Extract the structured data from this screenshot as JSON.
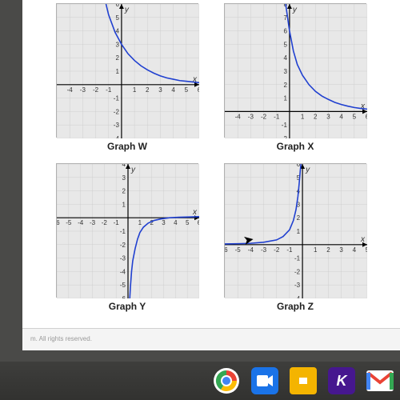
{
  "footer_text": "m. All rights reserved.",
  "graphs": {
    "W": {
      "label": "Graph W",
      "bg": "#e8e8e8",
      "grid": "#cfcfcf",
      "axis": "#000000",
      "curve": "#2040d0",
      "xlim": [
        -5,
        6
      ],
      "ylim": [
        -4,
        6
      ],
      "xticks": [
        -4,
        -3,
        -2,
        -1,
        1,
        2,
        3,
        4,
        5,
        6
      ],
      "yticks": [
        -4,
        -3,
        -2,
        -1,
        1,
        2,
        3,
        4,
        5,
        6
      ],
      "points_x": [
        -1.2,
        -1,
        -0.5,
        0,
        0.5,
        1,
        1.5,
        2,
        2.5,
        3,
        3.5,
        4,
        4.5,
        5,
        5.5,
        6
      ],
      "points_y": [
        6,
        5.2,
        3.9,
        3,
        2.3,
        1.8,
        1.4,
        1.1,
        0.85,
        0.65,
        0.5,
        0.4,
        0.3,
        0.25,
        0.2,
        0.15
      ]
    },
    "X": {
      "label": "Graph X",
      "bg": "#e8e8e8",
      "grid": "#cfcfcf",
      "axis": "#000000",
      "curve": "#2040d0",
      "xlim": [
        -5,
        6
      ],
      "ylim": [
        -2,
        8
      ],
      "xticks": [
        -4,
        -3,
        -2,
        -1,
        1,
        2,
        3,
        4,
        5,
        6
      ],
      "yticks": [
        -2,
        -1,
        1,
        2,
        3,
        4,
        5,
        6,
        7,
        8
      ],
      "points_x": [
        -0.3,
        0,
        0.3,
        0.6,
        1,
        1.5,
        2,
        2.5,
        3,
        3.5,
        4,
        4.5,
        5,
        5.5,
        6
      ],
      "points_y": [
        8,
        6,
        4.5,
        3.5,
        2.7,
        2,
        1.5,
        1.15,
        0.9,
        0.68,
        0.52,
        0.4,
        0.3,
        0.23,
        0.18
      ]
    },
    "Y": {
      "label": "Graph Y",
      "bg": "#e8e8e8",
      "grid": "#cfcfcf",
      "axis": "#000000",
      "curve": "#2040d0",
      "xlim": [
        -6,
        6
      ],
      "ylim": [
        -6,
        4
      ],
      "xticks": [
        -6,
        -5,
        -4,
        -3,
        -2,
        -1,
        1,
        2,
        3,
        4,
        5,
        6
      ],
      "yticks": [
        -6,
        -5,
        -4,
        -3,
        -2,
        -1,
        1,
        2,
        3,
        4
      ],
      "points_x": [
        0.15,
        0.2,
        0.3,
        0.4,
        0.6,
        0.8,
        1,
        1.3,
        1.7,
        2.2,
        2.8,
        3.5,
        4.3,
        5.2,
        6
      ],
      "points_y": [
        -6,
        -5.2,
        -4,
        -3.2,
        -2.3,
        -1.6,
        -1.1,
        -0.7,
        -0.4,
        -0.2,
        -0.08,
        0,
        0.04,
        0.06,
        0.08
      ]
    },
    "Z": {
      "label": "Graph Z",
      "bg": "#e8e8e8",
      "grid": "#cfcfcf",
      "axis": "#000000",
      "curve": "#2040d0",
      "xlim": [
        -6,
        5
      ],
      "ylim": [
        -4,
        6
      ],
      "xticks": [
        -6,
        -5,
        -4,
        -3,
        -2,
        -1,
        1,
        2,
        3,
        4,
        5
      ],
      "yticks": [
        -4,
        -3,
        -2,
        -1,
        1,
        2,
        3,
        4,
        5,
        6
      ],
      "points_x": [
        -6,
        -5,
        -4,
        -3,
        -2,
        -1.5,
        -1,
        -0.7,
        -0.5,
        -0.35,
        -0.25,
        -0.18,
        -0.12
      ],
      "points_y": [
        0.05,
        0.07,
        0.1,
        0.18,
        0.35,
        0.6,
        1.1,
        1.8,
        2.6,
        3.6,
        4.6,
        5.4,
        6
      ]
    }
  },
  "taskbar": {
    "chrome": {
      "colors": [
        "#ea4335",
        "#fbbc05",
        "#34a853",
        "#4285f4"
      ]
    },
    "meet": {
      "bg": "#1a73e8"
    },
    "slides": {
      "bg": "#f4b400"
    },
    "kahoot": {
      "bg": "#46178f",
      "letter": "K"
    },
    "gmail": {
      "colors": [
        "#ea4335",
        "#fbbc05",
        "#34a853",
        "#4285f4"
      ]
    }
  }
}
